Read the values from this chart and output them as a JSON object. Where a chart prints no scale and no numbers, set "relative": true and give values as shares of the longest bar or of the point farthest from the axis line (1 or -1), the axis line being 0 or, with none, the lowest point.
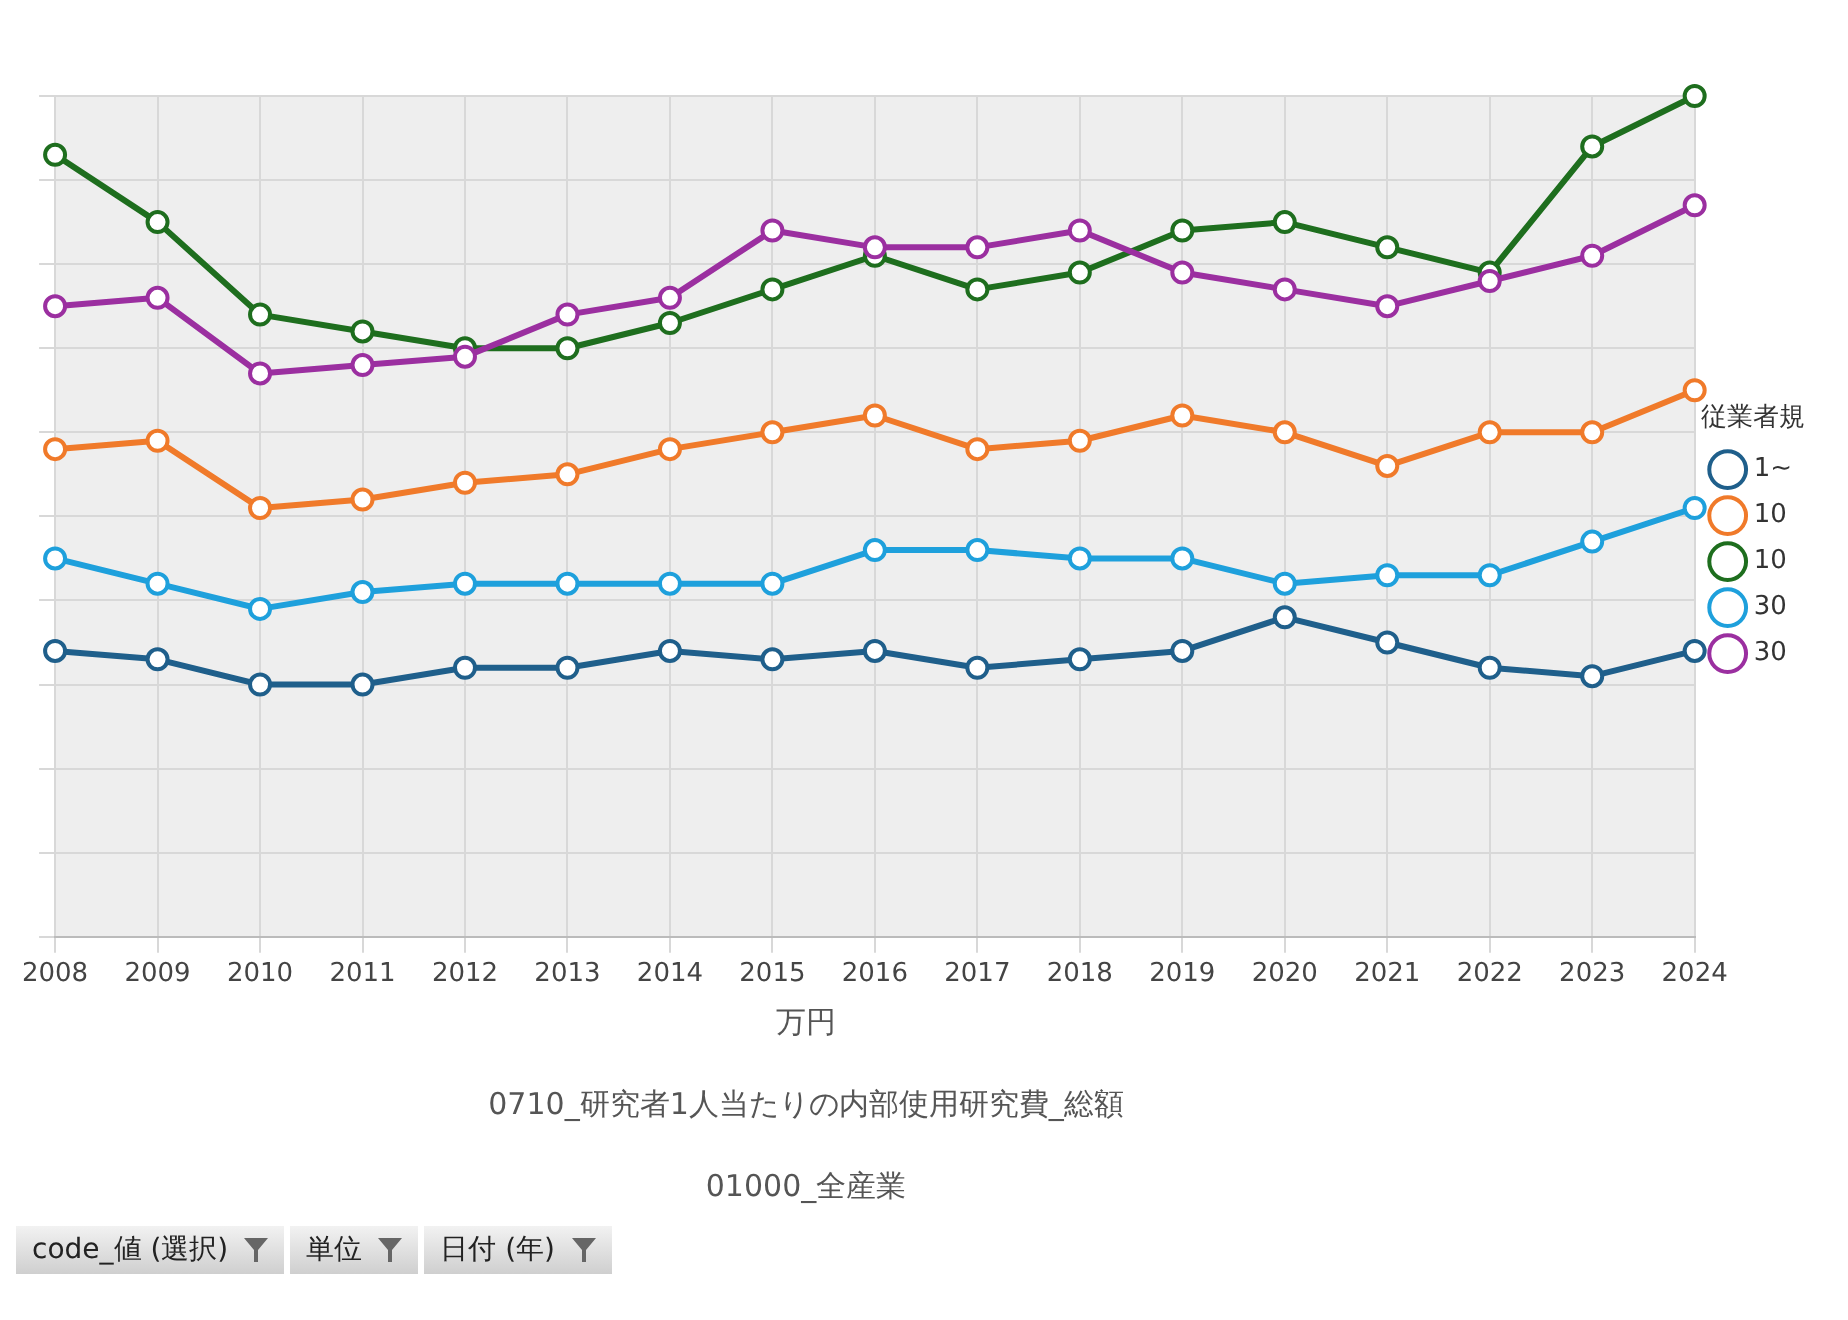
{
  "chart_data": {
    "type": "line",
    "relative": true,
    "categories": [
      "2008",
      "2009",
      "2010",
      "2011",
      "2012",
      "2013",
      "2014",
      "2015",
      "2016",
      "2017",
      "2018",
      "2019",
      "2020",
      "2021",
      "2022",
      "2023",
      "2024"
    ],
    "series": [
      {
        "name": "1~",
        "color": "#1f5f8b",
        "values": [
          0.34,
          0.33,
          0.3,
          0.3,
          0.32,
          0.32,
          0.34,
          0.33,
          0.34,
          0.32,
          0.33,
          0.34,
          0.38,
          0.35,
          0.32,
          0.31,
          0.34
        ]
      },
      {
        "name": "10",
        "color": "#f07a2a",
        "values": [
          0.58,
          0.59,
          0.51,
          0.52,
          0.54,
          0.55,
          0.58,
          0.6,
          0.62,
          0.58,
          0.59,
          0.62,
          0.6,
          0.56,
          0.6,
          0.6,
          0.65
        ]
      },
      {
        "name": "10",
        "color": "#1e6e1e",
        "values": [
          0.93,
          0.85,
          0.74,
          0.72,
          0.7,
          0.7,
          0.73,
          0.77,
          0.81,
          0.77,
          0.79,
          0.84,
          0.85,
          0.82,
          0.79,
          0.94,
          1
        ]
      },
      {
        "name": "30",
        "color": "#1ea0dc",
        "values": [
          0.45,
          0.42,
          0.39,
          0.41,
          0.42,
          0.42,
          0.42,
          0.42,
          0.46,
          0.46,
          0.45,
          0.45,
          0.42,
          0.43,
          0.43,
          0.47,
          0.51
        ]
      },
      {
        "name": "30",
        "color": "#9b2fa0",
        "values": [
          0.75,
          0.76,
          0.67,
          0.68,
          0.69,
          0.74,
          0.76,
          0.84,
          0.82,
          0.82,
          0.84,
          0.79,
          0.77,
          0.75,
          0.78,
          0.81,
          0.87
        ]
      }
    ],
    "legend_title": "従業者規",
    "legend": "right",
    "grid": true,
    "marker": "circle",
    "line_style": "solid",
    "annotations": [
      "万円",
      "0710_研究者1人当たりの内部使用研究費_総額",
      "01000_全産業",
      "code_値 (選択)",
      "単位",
      "日付 (年)"
    ]
  }
}
